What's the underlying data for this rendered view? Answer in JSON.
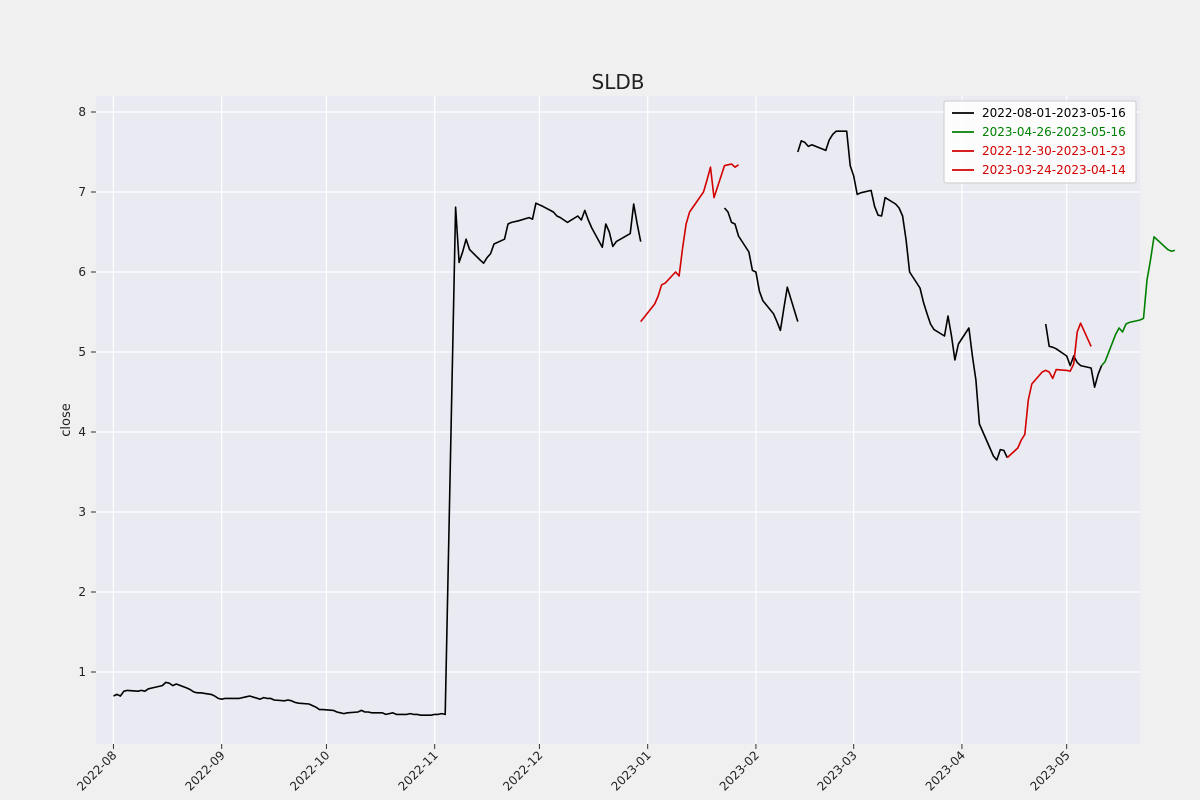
{
  "chart_data": {
    "type": "line",
    "title": "SLDB",
    "xlabel": "",
    "ylabel": "close",
    "ylim": [
      0.1,
      8.2
    ],
    "xlim": [
      "2022-07-27",
      "2023-05-22"
    ],
    "yticks": [
      1,
      2,
      3,
      4,
      5,
      6,
      7,
      8
    ],
    "xticks": [
      "2022-08-01",
      "2022-09-01",
      "2022-10-01",
      "2022-11-01",
      "2022-12-01",
      "2023-01-01",
      "2023-02-01",
      "2023-03-01",
      "2023-04-01",
      "2023-05-01"
    ],
    "xtick_labels": [
      "2022-08",
      "2022-09",
      "2022-10",
      "2022-11",
      "2022-12",
      "2023-01",
      "2023-02",
      "2023-03",
      "2023-04",
      "2023-05"
    ],
    "grid": true,
    "legend": "top-right",
    "background": "#eaeaf2",
    "series": [
      {
        "name": "2022-08-01-2023-05-16",
        "color": "#000000",
        "points": [
          [
            "2022-08-01",
            0.7
          ],
          [
            "2022-08-02",
            0.72
          ],
          [
            "2022-08-03",
            0.7
          ],
          [
            "2022-08-04",
            0.76
          ],
          [
            "2022-08-05",
            0.77
          ],
          [
            "2022-08-08",
            0.76
          ],
          [
            "2022-08-09",
            0.77
          ],
          [
            "2022-08-10",
            0.76
          ],
          [
            "2022-08-11",
            0.79
          ],
          [
            "2022-08-12",
            0.8
          ],
          [
            "2022-08-15",
            0.83
          ],
          [
            "2022-08-16",
            0.87
          ],
          [
            "2022-08-17",
            0.86
          ],
          [
            "2022-08-18",
            0.83
          ],
          [
            "2022-08-19",
            0.85
          ],
          [
            "2022-08-22",
            0.8
          ],
          [
            "2022-08-23",
            0.78
          ],
          [
            "2022-08-24",
            0.75
          ],
          [
            "2022-08-25",
            0.74
          ],
          [
            "2022-08-26",
            0.74
          ],
          [
            "2022-08-29",
            0.72
          ],
          [
            "2022-08-30",
            0.7
          ],
          [
            "2022-08-31",
            0.67
          ],
          [
            "2022-09-01",
            0.66
          ],
          [
            "2022-09-02",
            0.67
          ],
          [
            "2022-09-06",
            0.67
          ],
          [
            "2022-09-07",
            0.68
          ],
          [
            "2022-09-08",
            0.69
          ],
          [
            "2022-09-09",
            0.7
          ],
          [
            "2022-09-12",
            0.66
          ],
          [
            "2022-09-13",
            0.68
          ],
          [
            "2022-09-14",
            0.67
          ],
          [
            "2022-09-15",
            0.67
          ],
          [
            "2022-09-16",
            0.65
          ],
          [
            "2022-09-19",
            0.64
          ],
          [
            "2022-09-20",
            0.65
          ],
          [
            "2022-09-21",
            0.64
          ],
          [
            "2022-09-22",
            0.62
          ],
          [
            "2022-09-23",
            0.61
          ],
          [
            "2022-09-26",
            0.6
          ],
          [
            "2022-09-27",
            0.58
          ],
          [
            "2022-09-28",
            0.56
          ],
          [
            "2022-09-29",
            0.53
          ],
          [
            "2022-09-30",
            0.53
          ],
          [
            "2022-10-03",
            0.52
          ],
          [
            "2022-10-04",
            0.5
          ],
          [
            "2022-10-05",
            0.49
          ],
          [
            "2022-10-06",
            0.48
          ],
          [
            "2022-10-07",
            0.49
          ],
          [
            "2022-10-10",
            0.5
          ],
          [
            "2022-10-11",
            0.52
          ],
          [
            "2022-10-12",
            0.5
          ],
          [
            "2022-10-13",
            0.5
          ],
          [
            "2022-10-14",
            0.49
          ],
          [
            "2022-10-17",
            0.49
          ],
          [
            "2022-10-18",
            0.47
          ],
          [
            "2022-10-19",
            0.48
          ],
          [
            "2022-10-20",
            0.49
          ],
          [
            "2022-10-21",
            0.47
          ],
          [
            "2022-10-24",
            0.47
          ],
          [
            "2022-10-25",
            0.48
          ],
          [
            "2022-10-26",
            0.47
          ],
          [
            "2022-10-27",
            0.47
          ],
          [
            "2022-10-28",
            0.46
          ],
          [
            "2022-10-31",
            0.46
          ],
          [
            "2022-11-01",
            0.47
          ],
          [
            "2022-11-02",
            0.47
          ],
          [
            "2022-11-03",
            0.48
          ],
          [
            "2022-11-04",
            0.47
          ],
          [
            "2022-11-07",
            6.81
          ],
          [
            "2022-11-08",
            6.12
          ],
          [
            "2022-11-09",
            6.25
          ],
          [
            "2022-11-10",
            6.41
          ],
          [
            "2022-11-11",
            6.28
          ],
          [
            "2022-11-14",
            6.15
          ],
          [
            "2022-11-15",
            6.11
          ],
          [
            "2022-11-16",
            6.18
          ],
          [
            "2022-11-17",
            6.23
          ],
          [
            "2022-11-18",
            6.35
          ],
          [
            "2022-11-21",
            6.41
          ],
          [
            "2022-11-22",
            6.6
          ],
          [
            "2022-11-23",
            6.62
          ],
          [
            "2022-11-25",
            6.64
          ],
          [
            "2022-11-28",
            6.68
          ],
          [
            "2022-11-29",
            6.66
          ],
          [
            "2022-11-30",
            6.86
          ],
          [
            "2022-12-01",
            6.84
          ],
          [
            "2022-12-02",
            6.82
          ],
          [
            "2022-12-05",
            6.75
          ],
          [
            "2022-12-06",
            6.7
          ],
          [
            "2022-12-07",
            6.68
          ],
          [
            "2022-12-08",
            6.65
          ],
          [
            "2022-12-09",
            6.62
          ],
          [
            "2022-12-12",
            6.7
          ],
          [
            "2022-12-13",
            6.65
          ],
          [
            "2022-12-14",
            6.77
          ],
          [
            "2022-12-15",
            6.65
          ],
          [
            "2022-12-16",
            6.55
          ],
          [
            "2022-12-19",
            6.31
          ],
          [
            "2022-12-20",
            6.6
          ],
          [
            "2022-12-21",
            6.5
          ],
          [
            "2022-12-22",
            6.32
          ],
          [
            "2022-12-23",
            6.38
          ],
          [
            "2022-12-27",
            6.48
          ],
          [
            "2022-12-28",
            6.85
          ],
          [
            "2022-12-29",
            6.6
          ],
          [
            "2022-12-30",
            6.38
          ]
        ]
      },
      {
        "name": "",
        "color": "#000000",
        "points": [
          [
            "2023-01-23",
            6.8
          ],
          [
            "2023-01-24",
            6.75
          ],
          [
            "2023-01-25",
            6.62
          ],
          [
            "2023-01-26",
            6.6
          ],
          [
            "2023-01-27",
            6.45
          ],
          [
            "2023-01-30",
            6.25
          ],
          [
            "2023-01-31",
            6.02
          ],
          [
            "2023-02-01",
            6.0
          ],
          [
            "2023-02-02",
            5.76
          ],
          [
            "2023-02-03",
            5.64
          ],
          [
            "2023-02-06",
            5.48
          ],
          [
            "2023-02-07",
            5.38
          ],
          [
            "2023-02-08",
            5.27
          ],
          [
            "2023-02-09",
            5.55
          ],
          [
            "2023-02-10",
            5.81
          ],
          [
            "2023-02-13",
            5.38
          ]
        ]
      },
      {
        "name": "",
        "color": "#000000",
        "points": [
          [
            "2023-02-13",
            7.5
          ],
          [
            "2023-02-14",
            7.64
          ],
          [
            "2023-02-15",
            7.62
          ],
          [
            "2023-02-16",
            7.57
          ],
          [
            "2023-02-17",
            7.59
          ],
          [
            "2023-02-21",
            7.52
          ],
          [
            "2023-02-22",
            7.65
          ],
          [
            "2023-02-23",
            7.72
          ],
          [
            "2023-02-24",
            7.76
          ],
          [
            "2023-02-27",
            7.76
          ],
          [
            "2023-02-28",
            7.33
          ],
          [
            "2023-03-01",
            7.2
          ],
          [
            "2023-03-02",
            6.97
          ],
          [
            "2023-03-03",
            6.99
          ],
          [
            "2023-03-06",
            7.02
          ],
          [
            "2023-03-07",
            6.82
          ],
          [
            "2023-03-08",
            6.71
          ],
          [
            "2023-03-09",
            6.7
          ],
          [
            "2023-03-10",
            6.93
          ],
          [
            "2023-03-13",
            6.85
          ],
          [
            "2023-03-14",
            6.8
          ],
          [
            "2023-03-15",
            6.7
          ],
          [
            "2023-03-16",
            6.4
          ],
          [
            "2023-03-17",
            6.0
          ],
          [
            "2023-03-20",
            5.8
          ],
          [
            "2023-03-21",
            5.62
          ],
          [
            "2023-03-22",
            5.48
          ],
          [
            "2023-03-23",
            5.35
          ],
          [
            "2023-03-24",
            5.28
          ],
          [
            "2023-03-27",
            5.2
          ],
          [
            "2023-03-28",
            5.45
          ],
          [
            "2023-03-29",
            5.2
          ],
          [
            "2023-03-30",
            4.9
          ],
          [
            "2023-03-31",
            5.1
          ],
          [
            "2023-04-03",
            5.3
          ],
          [
            "2023-04-04",
            4.95
          ],
          [
            "2023-04-05",
            4.65
          ],
          [
            "2023-04-06",
            4.1
          ],
          [
            "2023-04-10",
            3.7
          ],
          [
            "2023-04-11",
            3.65
          ],
          [
            "2023-04-12",
            3.78
          ],
          [
            "2023-04-13",
            3.77
          ],
          [
            "2023-04-14",
            3.68
          ]
        ]
      },
      {
        "name": "",
        "color": "#000000",
        "points": [
          [
            "2023-04-25",
            5.35
          ],
          [
            "2023-04-26",
            5.07
          ],
          [
            "2023-04-27",
            5.06
          ],
          [
            "2023-04-28",
            5.04
          ],
          [
            "2023-05-01",
            4.95
          ],
          [
            "2023-05-02",
            4.83
          ],
          [
            "2023-05-03",
            4.95
          ],
          [
            "2023-05-04",
            4.87
          ],
          [
            "2023-05-05",
            4.83
          ],
          [
            "2023-05-08",
            4.8
          ],
          [
            "2023-05-09",
            4.56
          ],
          [
            "2023-05-10",
            4.72
          ],
          [
            "2023-05-11",
            4.83
          ]
        ]
      },
      {
        "name": "2023-04-26-2023-05-16",
        "color": "#008000",
        "points": [
          [
            "2023-05-11",
            4.83
          ],
          [
            "2023-05-12",
            4.88
          ],
          [
            "2023-05-15",
            5.22
          ],
          [
            "2023-05-16",
            5.3
          ],
          [
            "2023-05-17",
            5.25
          ],
          [
            "2023-05-18",
            5.35
          ],
          [
            "2023-05-19",
            5.37
          ],
          [
            "2023-05-22",
            5.4
          ],
          [
            "2023-05-23",
            5.42
          ],
          [
            "2023-05-24",
            5.9
          ],
          [
            "2023-05-25",
            6.15
          ],
          [
            "2023-05-26",
            6.44
          ],
          [
            "2023-05-29",
            6.32
          ],
          [
            "2023-05-30",
            6.28
          ],
          [
            "2023-05-31",
            6.26
          ],
          [
            "2023-06-01",
            6.27
          ]
        ]
      },
      {
        "name": "2022-12-30-2023-01-23",
        "color": "#d40000",
        "points": [
          [
            "2022-12-30",
            5.38
          ],
          [
            "2023-01-03",
            5.6
          ],
          [
            "2023-01-04",
            5.7
          ],
          [
            "2023-01-05",
            5.84
          ],
          [
            "2023-01-06",
            5.86
          ],
          [
            "2023-01-09",
            6.0
          ],
          [
            "2023-01-10",
            5.95
          ],
          [
            "2023-01-11",
            6.3
          ],
          [
            "2023-01-12",
            6.6
          ],
          [
            "2023-01-13",
            6.75
          ],
          [
            "2023-01-17",
            7.0
          ],
          [
            "2023-01-18",
            7.15
          ],
          [
            "2023-01-19",
            7.31
          ],
          [
            "2023-01-20",
            6.93
          ],
          [
            "2023-01-23",
            7.33
          ],
          [
            "2023-01-24",
            7.34
          ],
          [
            "2023-01-25",
            7.35
          ],
          [
            "2023-01-26",
            7.31
          ],
          [
            "2023-01-27",
            7.34
          ]
        ]
      },
      {
        "name": "2023-03-24-2023-04-14",
        "color": "#d40000",
        "points": [
          [
            "2023-04-14",
            3.68
          ],
          [
            "2023-04-17",
            3.8
          ],
          [
            "2023-04-18",
            3.9
          ],
          [
            "2023-04-19",
            3.97
          ],
          [
            "2023-04-20",
            4.4
          ],
          [
            "2023-04-21",
            4.6
          ],
          [
            "2023-04-24",
            4.75
          ],
          [
            "2023-04-25",
            4.77
          ],
          [
            "2023-04-26",
            4.75
          ],
          [
            "2023-04-27",
            4.67
          ],
          [
            "2023-04-28",
            4.78
          ],
          [
            "2023-05-01",
            4.77
          ],
          [
            "2023-05-02",
            4.76
          ],
          [
            "2023-05-03",
            4.85
          ],
          [
            "2023-05-04",
            5.25
          ],
          [
            "2023-05-05",
            5.36
          ],
          [
            "2023-05-08",
            5.07
          ]
        ]
      }
    ]
  }
}
